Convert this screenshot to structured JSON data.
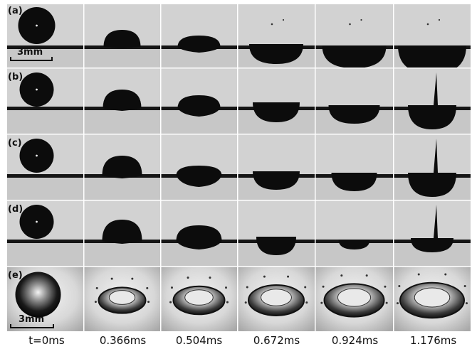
{
  "rows": [
    {
      "label": "(a)",
      "kind": "side"
    },
    {
      "label": "(b)",
      "kind": "side"
    },
    {
      "label": "(c)",
      "kind": "side"
    },
    {
      "label": "(d)",
      "kind": "side"
    },
    {
      "label": "(e)",
      "kind": "top"
    }
  ],
  "scale_bars": [
    {
      "row": 0,
      "text": "3mm"
    },
    {
      "row": 4,
      "text": "3mm"
    }
  ],
  "time_labels": [
    "t=0ms",
    "0.366ms",
    "0.504ms",
    "0.672ms",
    "0.924ms",
    "1.176ms"
  ],
  "colors": {
    "background": "#d2d2d2",
    "liquid_upper": "#cfcfcf",
    "liquid_lower": "#c7c7c7",
    "droplet": "#0c0c0c",
    "separator": "#ffffff"
  }
}
